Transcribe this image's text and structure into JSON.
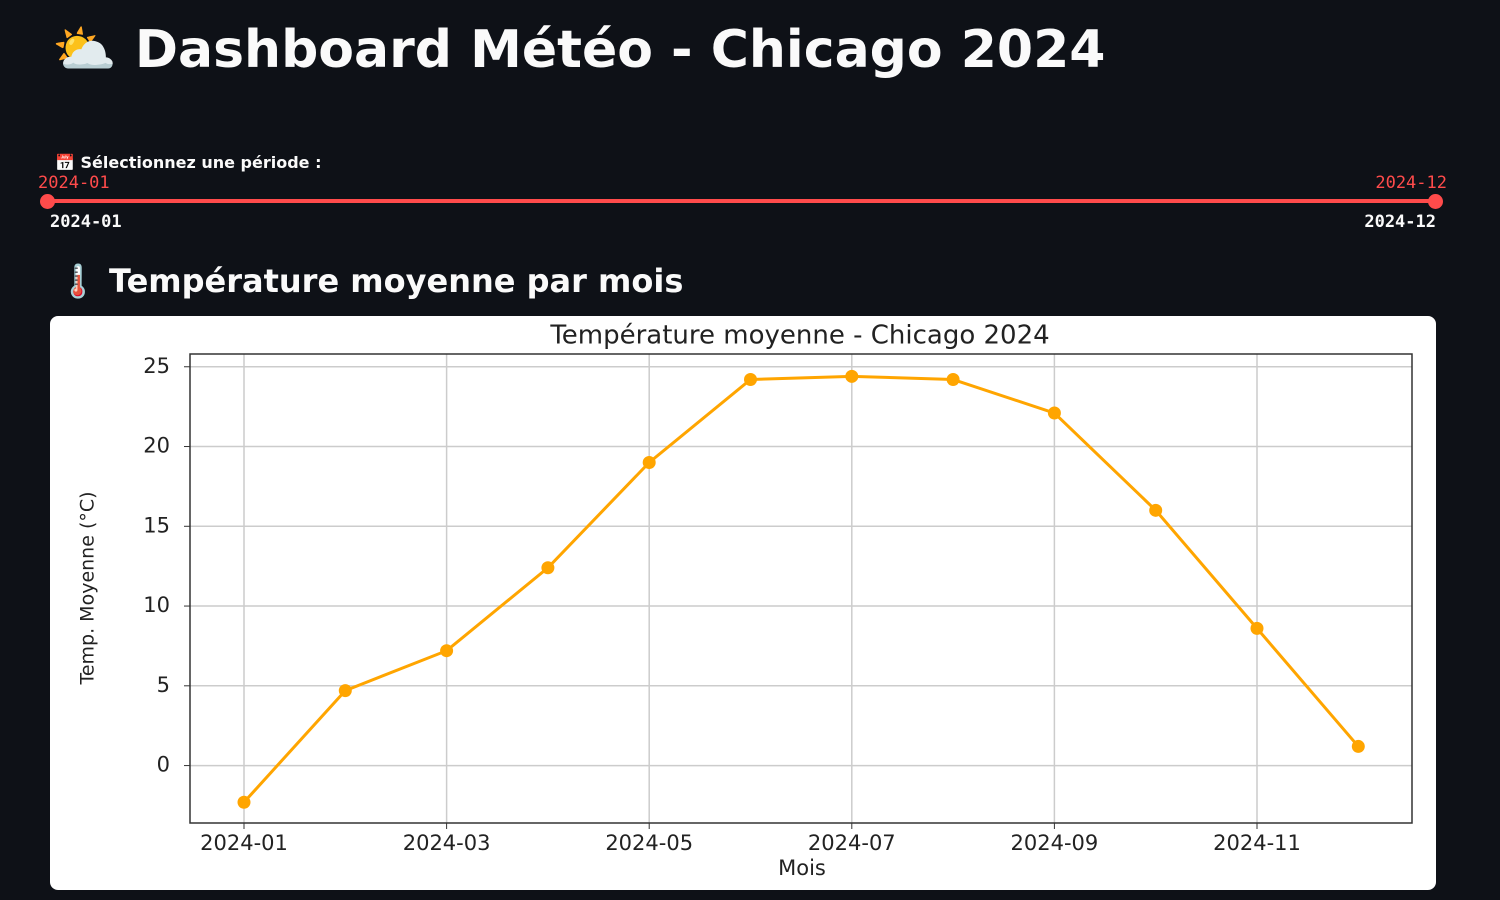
{
  "header": {
    "title": "⛅ Dashboard Météo - Chicago 2024"
  },
  "slider": {
    "label": "📅 Sélectionnez une période :",
    "value": [
      "2024-01",
      "2024-12"
    ],
    "min": "2024-01",
    "max": "2024-12"
  },
  "section": {
    "title": "🌡️ Température moyenne par mois"
  },
  "chart_data": {
    "type": "line",
    "title": "Température moyenne - Chicago 2024",
    "x_label": "Mois",
    "y_label": "Temp. Moyenne (°C)",
    "categories": [
      "2024-01",
      null,
      "2024-03",
      null,
      "2024-05",
      null,
      "2024-07",
      null,
      "2024-09",
      null,
      "2024-11",
      null
    ],
    "series": [
      {
        "name": "Temp. Moyenne (°C)",
        "color": "#ffa500",
        "values": [
          -2.3,
          4.7,
          7.2,
          12.4,
          19.0,
          24.2,
          24.4,
          24.2,
          22.1,
          16.0,
          8.6,
          1.2
        ]
      }
    ],
    "ylim": [
      -3.6,
      25.8
    ],
    "yticks": [
      0,
      5,
      10,
      15,
      20,
      25
    ],
    "grid": true
  }
}
